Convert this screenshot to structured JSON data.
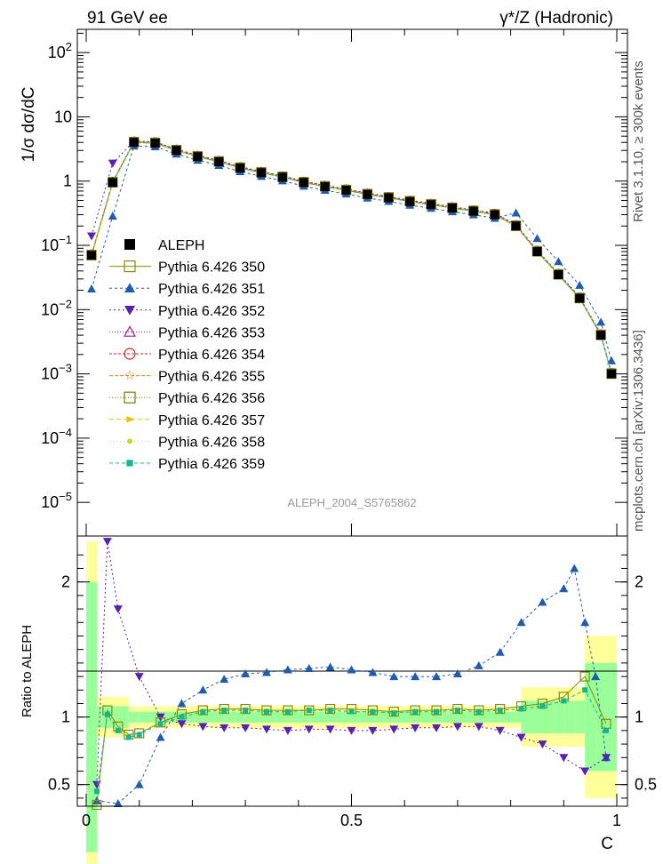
{
  "header": {
    "left": "91 GeV ee",
    "right": "γ*/Z (Hadronic)"
  },
  "side_text": {
    "top": "Rivet 3.1.10, ≥ 300k events",
    "bottom": "mcplots.cern.ch [arXiv:1306.3436]"
  },
  "analysis_id": "ALEPH_2004_S5765862",
  "colors": {
    "data": "#000000",
    "p350": "#8b8b00",
    "p351": "#1f5cb0",
    "p352": "#5a1fb5",
    "p353": "#b0206e",
    "p354": "#d82020",
    "p355": "#f07a10",
    "p356": "#7a7a00",
    "p357": "#e8c000",
    "p358": "#c8d820",
    "p359": "#10b890",
    "band_yellow": "#ffff99",
    "band_green": "#99ff99"
  },
  "chart_data": [
    {
      "type": "scatter",
      "panel": "main",
      "ylabel": "1/σ  dσ/dC",
      "xlim": [
        0,
        1
      ],
      "ylog": true,
      "ylim": [
        3e-06,
        230
      ],
      "y_ticks": [
        {
          "value": 100,
          "base": "10",
          "exp": "2"
        },
        {
          "value": 10,
          "label": "10"
        },
        {
          "value": 1,
          "label": "1"
        },
        {
          "value": 0.1,
          "base": "10",
          "exp": "−1"
        },
        {
          "value": 0.01,
          "base": "10",
          "exp": "−2"
        },
        {
          "value": 0.001,
          "base": "10",
          "exp": "−3"
        },
        {
          "value": 0.0001,
          "base": "10",
          "exp": "−4"
        },
        {
          "value": 1e-05,
          "base": "10",
          "exp": "−5"
        }
      ],
      "legend": {
        "placement": "center-left"
      },
      "series": [
        {
          "key": "data",
          "name": "ALEPH",
          "x": [
            0.01,
            0.05,
            0.09,
            0.13,
            0.17,
            0.21,
            0.25,
            0.29,
            0.33,
            0.37,
            0.41,
            0.45,
            0.49,
            0.53,
            0.57,
            0.61,
            0.65,
            0.69,
            0.73,
            0.77,
            0.81,
            0.85,
            0.89,
            0.93,
            0.97,
            0.99
          ],
          "y": [
            0.07,
            0.95,
            4.0,
            3.9,
            3.0,
            2.4,
            2.0,
            1.6,
            1.35,
            1.15,
            0.95,
            0.82,
            0.72,
            0.62,
            0.55,
            0.48,
            0.43,
            0.38,
            0.34,
            0.3,
            0.2,
            0.08,
            0.035,
            0.015,
            0.004,
            0.001
          ]
        },
        {
          "key": "p350",
          "name": "Pythia 6.426 350"
        },
        {
          "key": "p351",
          "name": "Pythia 6.426 351"
        },
        {
          "key": "p352",
          "name": "Pythia 6.426 352"
        },
        {
          "key": "p353",
          "name": "Pythia 6.426 353"
        },
        {
          "key": "p354",
          "name": "Pythia 6.426 354"
        },
        {
          "key": "p355",
          "name": "Pythia 6.426 355"
        },
        {
          "key": "p356",
          "name": "Pythia 6.426 356"
        },
        {
          "key": "p357",
          "name": "Pythia 6.426 357"
        },
        {
          "key": "p358",
          "name": "Pythia 6.426 358"
        },
        {
          "key": "p359",
          "name": "Pythia 6.426 359"
        }
      ]
    },
    {
      "type": "scatter",
      "panel": "ratio",
      "xlabel": "C",
      "ylabel": "Ratio to ALEPH",
      "xlim": [
        0,
        1
      ],
      "ylim": [
        0.34,
        2.34
      ],
      "x_ticks": [
        {
          "value": 0,
          "label": "0"
        },
        {
          "value": 0.5,
          "label": "0.5"
        },
        {
          "value": 1,
          "label": "1"
        }
      ],
      "y_ticks": [
        {
          "value": 2,
          "label": "2"
        },
        {
          "value": 1,
          "label": "1"
        },
        {
          "value": 0.5,
          "label": "0.5"
        }
      ],
      "series": [
        {
          "key": "p351",
          "name": "Pythia 6.426 351 / ALEPH",
          "x": [
            0.02,
            0.06,
            0.1,
            0.14,
            0.18,
            0.22,
            0.26,
            0.3,
            0.34,
            0.38,
            0.42,
            0.46,
            0.5,
            0.54,
            0.58,
            0.62,
            0.66,
            0.7,
            0.74,
            0.78,
            0.82,
            0.86,
            0.9,
            0.92,
            0.94,
            0.96,
            0.98
          ],
          "y": [
            0.38,
            0.36,
            0.5,
            0.85,
            1.1,
            1.2,
            1.28,
            1.32,
            1.33,
            1.35,
            1.36,
            1.37,
            1.35,
            1.33,
            1.3,
            1.3,
            1.3,
            1.32,
            1.38,
            1.48,
            1.7,
            1.85,
            1.95,
            2.1,
            1.7,
            1.3,
            0.7
          ]
        },
        {
          "key": "p352",
          "name": "Pythia 6.426 352 / ALEPH",
          "x": [
            0.02,
            0.04,
            0.06,
            0.1,
            0.14,
            0.18,
            0.22,
            0.26,
            0.3,
            0.34,
            0.38,
            0.42,
            0.46,
            0.5,
            0.54,
            0.58,
            0.62,
            0.66,
            0.7,
            0.74,
            0.78,
            0.82,
            0.86,
            0.9,
            0.94,
            0.98
          ],
          "y": [
            0.5,
            2.3,
            1.8,
            1.3,
            1.0,
            0.95,
            0.93,
            0.92,
            0.92,
            0.91,
            0.9,
            0.91,
            0.91,
            0.9,
            0.9,
            0.91,
            0.92,
            0.92,
            0.93,
            0.93,
            0.9,
            0.85,
            0.8,
            0.7,
            0.6,
            0.7
          ]
        },
        {
          "key": "p350",
          "name": "Pythia 6.426 350 / ALEPH",
          "x": [
            0.02,
            0.04,
            0.06,
            0.08,
            0.1,
            0.14,
            0.18,
            0.22,
            0.26,
            0.3,
            0.34,
            0.38,
            0.42,
            0.46,
            0.5,
            0.54,
            0.58,
            0.62,
            0.66,
            0.7,
            0.74,
            0.78,
            0.82,
            0.86,
            0.9,
            0.94,
            0.98
          ],
          "y": [
            0.35,
            1.05,
            0.93,
            0.87,
            0.88,
            0.96,
            1.02,
            1.05,
            1.06,
            1.06,
            1.05,
            1.05,
            1.05,
            1.06,
            1.06,
            1.05,
            1.04,
            1.05,
            1.05,
            1.06,
            1.05,
            1.06,
            1.08,
            1.1,
            1.15,
            1.3,
            0.95
          ]
        },
        {
          "key": "p359",
          "name": "Pythia 6.426 359 / ALEPH",
          "x": [
            0.02,
            0.04,
            0.06,
            0.08,
            0.1,
            0.14,
            0.18,
            0.22,
            0.26,
            0.3,
            0.34,
            0.38,
            0.42,
            0.46,
            0.5,
            0.54,
            0.58,
            0.62,
            0.66,
            0.7,
            0.74,
            0.78,
            0.82,
            0.86,
            0.9,
            0.94,
            0.98
          ],
          "y": [
            0.45,
            1.02,
            0.9,
            0.85,
            0.87,
            0.95,
            1.0,
            1.04,
            1.05,
            1.05,
            1.04,
            1.04,
            1.05,
            1.05,
            1.04,
            1.04,
            1.03,
            1.04,
            1.04,
            1.05,
            1.04,
            1.05,
            1.06,
            1.08,
            1.12,
            1.2,
            0.9
          ]
        }
      ]
    }
  ]
}
